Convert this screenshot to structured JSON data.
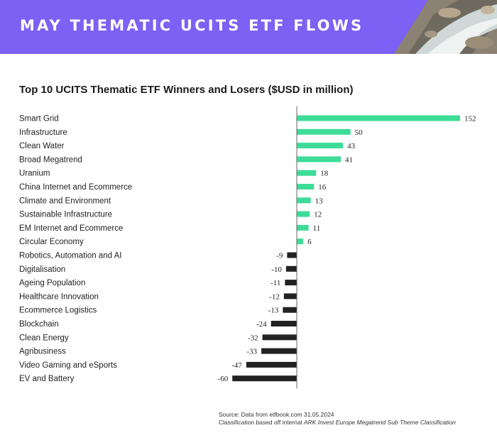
{
  "banner": {
    "title": "MAY THEMATIC UCITS ETF FLOWS"
  },
  "colors": {
    "banner_bg": "#7b61f4",
    "positive": "#3ddc97",
    "negative": "#222222",
    "axis": "#666666"
  },
  "chart_data": {
    "type": "bar",
    "orientation": "horizontal",
    "title": "Top 10 UCITS Thematic ETF Winners and Losers ($USD in million)",
    "xlabel": "",
    "ylabel": "",
    "xlim": [
      -60,
      152
    ],
    "grid": false,
    "legend": "none",
    "categories": [
      "Smart Grid",
      "Infrastructure",
      "Clean Water",
      "Broad Megatrend",
      "Uranium",
      "China Internet and Ecommerce",
      "Climate and Environment",
      "Sustainable Infrastructure",
      "EM Internet and Ecommerce",
      "Circular Economy",
      "Robotics, Automation and AI",
      "Digitalisation",
      "Ageing Population",
      "Healthcare Innovation",
      "Ecommerce Logistics",
      "Blockchain",
      "Clean Energy",
      "Agribusiness",
      "Video Gaming and eSports",
      "EV and Battery"
    ],
    "values": [
      152,
      50,
      43,
      41,
      18,
      16,
      13,
      12,
      11,
      6,
      -9,
      -10,
      -11,
      -12,
      -13,
      -24,
      -32,
      -33,
      -47,
      -60
    ]
  },
  "source": {
    "line1": "Source: Data from etfbook.com 31.05.2024",
    "line2_prefix": "Classification based off internal",
    "line2_italic": "ARK Invest Europe Megatrend Sub Theme Classification"
  }
}
